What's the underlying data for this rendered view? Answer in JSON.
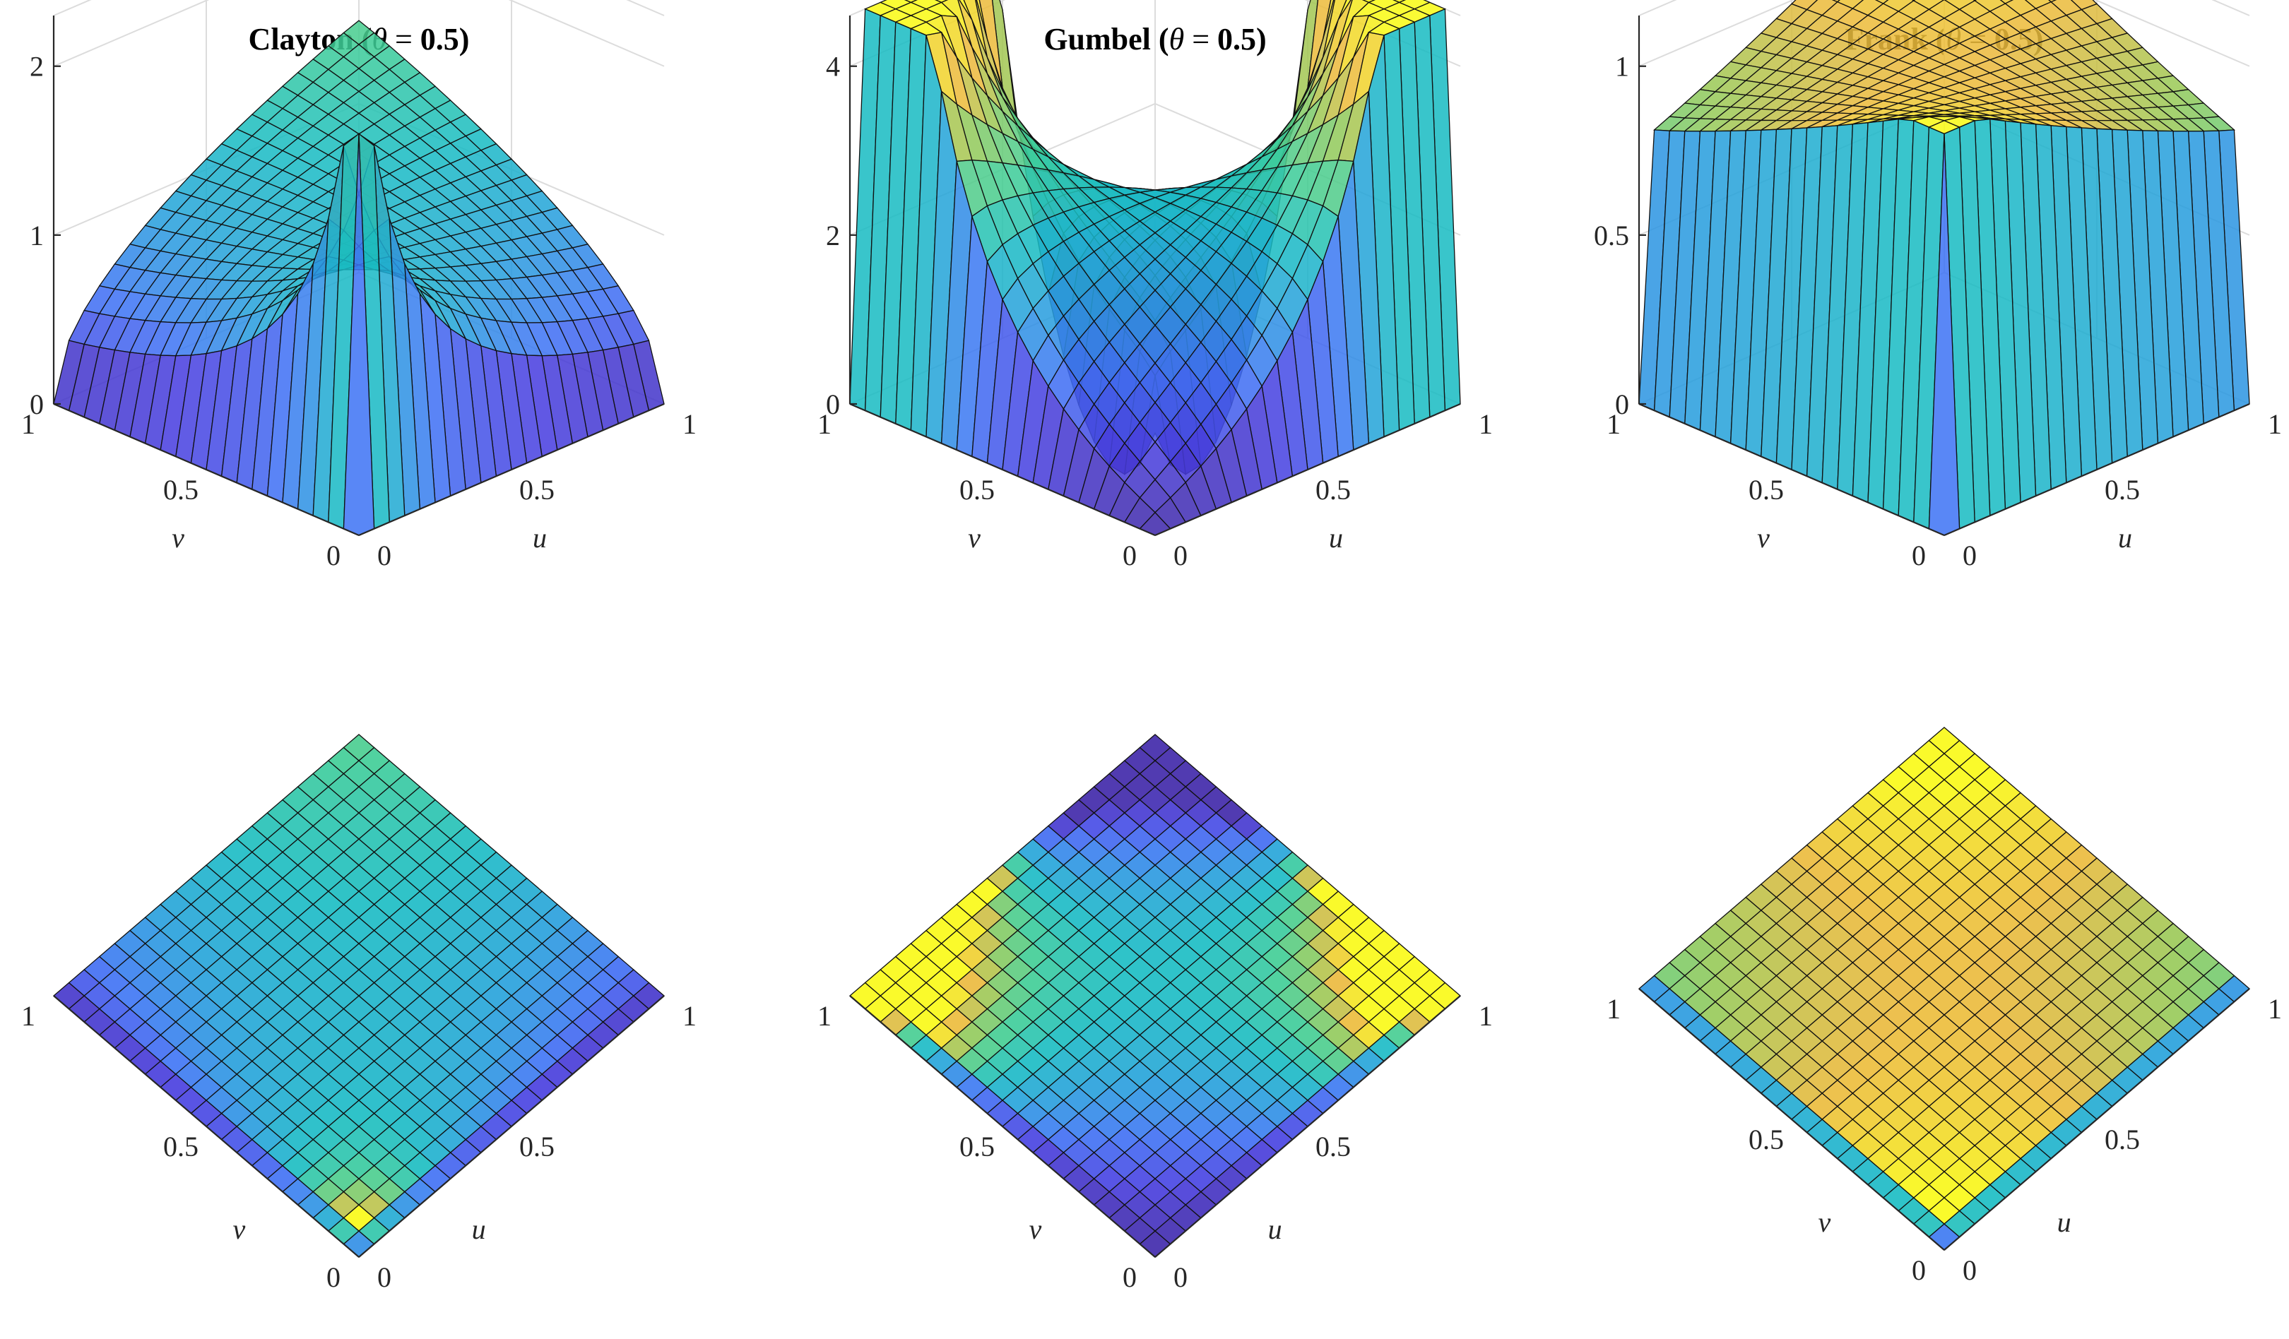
{
  "chart_data": [
    {
      "type": "surface3d",
      "name": "clayton-density-3d",
      "title": "Clayton",
      "parameter": {
        "symbol": "θ",
        "value": 0.5
      },
      "xlabel": "u",
      "ylabel": "v",
      "zlabel": "",
      "xlim": [
        0,
        1
      ],
      "ylim": [
        0,
        1
      ],
      "zlim": [
        0,
        2.3
      ],
      "xticks": [
        0,
        0.5,
        1
      ],
      "yticks": [
        0,
        0.5,
        1
      ],
      "zticks": [
        0,
        1,
        2
      ],
      "view": "3d",
      "grid": true,
      "colormap": "parula",
      "mesh": "20x20"
    },
    {
      "type": "surface3d",
      "name": "gumbel-density-3d",
      "title": "Gumbel",
      "parameter": {
        "symbol": "θ",
        "value": 0.5
      },
      "xlabel": "u",
      "ylabel": "v",
      "zlabel": "",
      "xlim": [
        0,
        1
      ],
      "ylim": [
        0,
        1
      ],
      "zlim": [
        0,
        4.6
      ],
      "xticks": [
        0,
        0.5,
        1
      ],
      "yticks": [
        0,
        0.5,
        1
      ],
      "zticks": [
        0,
        2,
        4
      ],
      "view": "3d",
      "grid": true,
      "colormap": "parula",
      "mesh": "20x20"
    },
    {
      "type": "surface3d",
      "name": "frank-density-3d",
      "title": "Frank",
      "parameter": {
        "symbol": "θ",
        "value": 0.5
      },
      "xlabel": "u",
      "ylabel": "v",
      "zlabel": "",
      "xlim": [
        0,
        1
      ],
      "ylim": [
        0,
        1
      ],
      "zlim": [
        0,
        1.15
      ],
      "xticks": [
        0,
        0.5,
        1
      ],
      "yticks": [
        0,
        0.5,
        1
      ],
      "zticks": [
        0,
        0.5,
        1
      ],
      "view": "3d",
      "grid": true,
      "colormap": "parula",
      "mesh": "20x20"
    },
    {
      "type": "surface-topview",
      "name": "clayton-density-top",
      "title": "",
      "xlabel": "u",
      "ylabel": "v",
      "xticks": [
        0,
        0.5,
        1
      ],
      "yticks": [
        0,
        0.5,
        1
      ],
      "view": "top",
      "colormap": "parula"
    },
    {
      "type": "surface-topview",
      "name": "gumbel-density-top",
      "title": "",
      "xlabel": "u",
      "ylabel": "v",
      "xticks": [
        0,
        0.5,
        1
      ],
      "yticks": [
        0,
        0.5,
        1
      ],
      "view": "top",
      "colormap": "parula"
    },
    {
      "type": "surface-topview",
      "name": "frank-density-top",
      "title": "",
      "xlabel": "u",
      "ylabel": "v",
      "xticks": [
        0,
        0.5,
        1
      ],
      "yticks": [
        0,
        0.5,
        1
      ],
      "view": "top",
      "colormap": "parula"
    }
  ]
}
